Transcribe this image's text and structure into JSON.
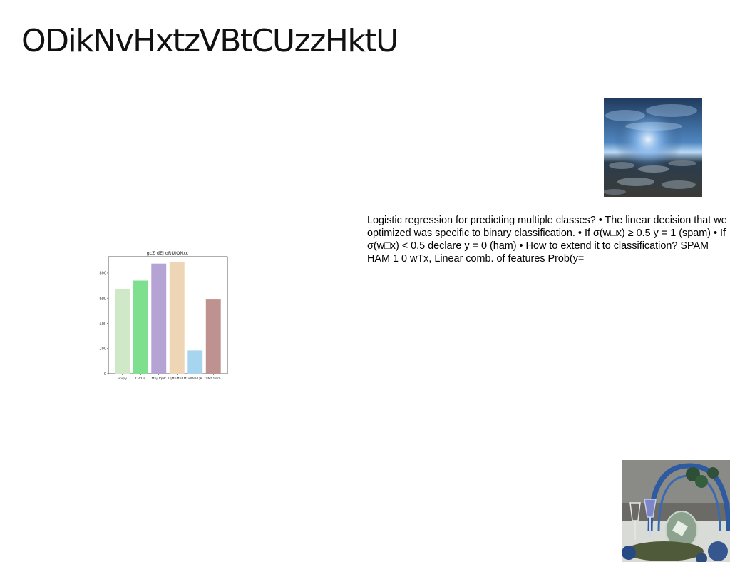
{
  "slide": {
    "title": "ODikNvHxtzVBtCUzzHktU",
    "body_text": "Logistic regression for predicting multiple classes? • The linear decision that we optimized was specific to binary classification. • If σ(w□x) ≥ 0.5 y = 1 (spam) • If σ(w□x) < 0.5 declare y = 0 (ham) • How to extend it to classification? SPAM HAM 1 0 wTx, Linear comb. of features Prob(y="
  },
  "images": {
    "top": {
      "icon": "ocean-night-photo"
    },
    "bottom": {
      "icon": "table-setting-photo"
    }
  },
  "chart_data": {
    "type": "bar",
    "title": "gcZ dEj oRUIQNxc",
    "xlabel": "",
    "ylabel": "",
    "categories": [
      "vpipy",
      "CPrOR",
      "MbjOqMt",
      "TqMnMhRM",
      "vXteEQR",
      "SMfOvIcE"
    ],
    "values": [
      675,
      740,
      875,
      885,
      185,
      595
    ],
    "colors": [
      "#cfe8c8",
      "#7ee08e",
      "#b5a3d4",
      "#edd5b5",
      "#a7d4ef",
      "#bd928f"
    ],
    "ylim": [
      0,
      930
    ],
    "yticks": [
      0,
      200,
      400,
      600,
      800
    ],
    "grid": false,
    "legend": "none"
  }
}
